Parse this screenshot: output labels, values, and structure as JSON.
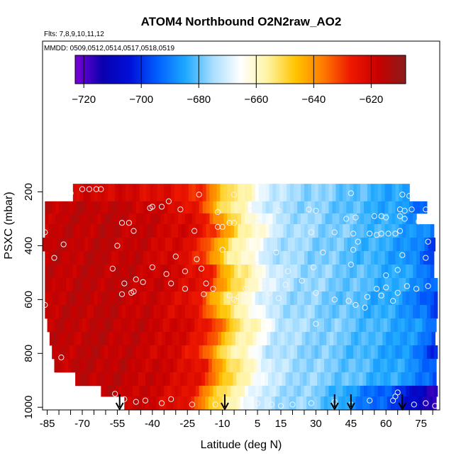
{
  "chart_data": {
    "type": "heatmap",
    "title": "ATOM4 Northbound O2N2raw_AO2",
    "flights_note": "Flts: 7,8,9,10,11,12",
    "dates_note": "MMDD: 0509,0512,0514,0517,0518,0519",
    "xlabel": "Latitude (deg N)",
    "ylabel": "PSXC (mbar)",
    "x_ticks": [
      -85,
      -70,
      -55,
      -40,
      -25,
      -10,
      5,
      15,
      30,
      45,
      60,
      75
    ],
    "y_ticks": [
      200,
      400,
      600,
      800,
      1000
    ],
    "x_range": [
      -87,
      83
    ],
    "y_range": [
      1010,
      -360
    ],
    "colorbar": {
      "min": -723,
      "max": -608,
      "ticks": [
        -720,
        -700,
        -680,
        -660,
        -640,
        -620
      ],
      "colors": [
        "#7a00d6",
        "#0a00b0",
        "#0010d8",
        "#0060ff",
        "#1ea8ff",
        "#a8deff",
        "#ffffff",
        "#fff3a0",
        "#ffc400",
        "#ff7a00",
        "#ee1800",
        "#c80000",
        "#8a1c1c"
      ]
    },
    "arrows_latitude": [
      -54,
      -9,
      38,
      45,
      67
    ],
    "levels": [
      {
        "p_top": 170,
        "p_bot": 235,
        "lat_min": -74,
        "lat_max": 70
      },
      {
        "p_top": 235,
        "p_bot": 280,
        "lat_min": -86,
        "lat_max": 77
      },
      {
        "p_top": 280,
        "p_bot": 320,
        "lat_min": -86,
        "lat_max": 72
      },
      {
        "p_top": 320,
        "p_bot": 370,
        "lat_min": -86,
        "lat_max": 80
      },
      {
        "p_top": 370,
        "p_bot": 420,
        "lat_min": -87,
        "lat_max": 80
      },
      {
        "p_top": 420,
        "p_bot": 470,
        "lat_min": -86,
        "lat_max": 80
      },
      {
        "p_top": 470,
        "p_bot": 520,
        "lat_min": -86,
        "lat_max": 80
      },
      {
        "p_top": 520,
        "p_bot": 570,
        "lat_min": -86,
        "lat_max": 81
      },
      {
        "p_top": 570,
        "p_bot": 620,
        "lat_min": -86,
        "lat_max": 81
      },
      {
        "p_top": 620,
        "p_bot": 670,
        "lat_min": -86,
        "lat_max": 81
      },
      {
        "p_top": 670,
        "p_bot": 720,
        "lat_min": -85,
        "lat_max": 81
      },
      {
        "p_top": 720,
        "p_bot": 770,
        "lat_min": -84,
        "lat_max": 81
      },
      {
        "p_top": 770,
        "p_bot": 820,
        "lat_min": -83,
        "lat_max": 81
      },
      {
        "p_top": 820,
        "p_bot": 870,
        "lat_min": -82,
        "lat_max": 81
      },
      {
        "p_top": 870,
        "p_bot": 920,
        "lat_min": -73,
        "lat_max": 81
      },
      {
        "p_top": 920,
        "p_bot": 960,
        "lat_min": -62,
        "lat_max": 81
      },
      {
        "p_top": 960,
        "p_bot": 1010,
        "lat_min": -52,
        "lat_max": 81
      }
    ],
    "profile_lat": [
      -87,
      -60,
      -40,
      -25,
      -17,
      -13,
      -8,
      -5,
      -1,
      3,
      8,
      12,
      20,
      30,
      40,
      48,
      55,
      65,
      72,
      78,
      83
    ],
    "profile_val": [
      -617,
      -616,
      -618,
      -622,
      -628,
      -638,
      -648,
      -654,
      -657,
      -661,
      -668,
      -672,
      -675,
      -677,
      -679,
      -681,
      -683,
      -685,
      -688,
      -693,
      -700
    ],
    "obs_points": [
      [
        -70,
        190
      ],
      [
        -67,
        190
      ],
      [
        -64,
        190
      ],
      [
        -62,
        190
      ],
      [
        -75,
        205
      ],
      [
        -86,
        215
      ],
      [
        -20,
        210
      ],
      [
        -5,
        210
      ],
      [
        45,
        205
      ],
      [
        67,
        210
      ],
      [
        70,
        215
      ],
      [
        -33,
        235
      ],
      [
        -40,
        255
      ],
      [
        -36,
        255
      ],
      [
        -41,
        260
      ],
      [
        -28,
        265
      ],
      [
        -12,
        275
      ],
      [
        2,
        270
      ],
      [
        14,
        270
      ],
      [
        27,
        265
      ],
      [
        30,
        270
      ],
      [
        66,
        265
      ],
      [
        68,
        270
      ],
      [
        71,
        265
      ],
      [
        77,
        265
      ],
      [
        -53,
        315
      ],
      [
        -50,
        315
      ],
      [
        -7,
        315
      ],
      [
        -5,
        315
      ],
      [
        2,
        310
      ],
      [
        5,
        315
      ],
      [
        43,
        300
      ],
      [
        47,
        295
      ],
      [
        55,
        290
      ],
      [
        58,
        290
      ],
      [
        60,
        295
      ],
      [
        66,
        290
      ],
      [
        -86,
        350
      ],
      [
        -48,
        345
      ],
      [
        -22,
        345
      ],
      [
        -12,
        330
      ],
      [
        -10,
        330
      ],
      [
        28,
        350
      ],
      [
        38,
        350
      ],
      [
        46,
        355
      ],
      [
        53,
        355
      ],
      [
        56,
        360
      ],
      [
        58,
        355
      ],
      [
        61,
        355
      ],
      [
        64,
        355
      ],
      [
        66,
        345
      ],
      [
        68,
        300
      ],
      [
        74,
        310
      ],
      [
        -78,
        395
      ],
      [
        -55,
        400
      ],
      [
        -10,
        415
      ],
      [
        13,
        425
      ],
      [
        33,
        425
      ],
      [
        48,
        385
      ],
      [
        78,
        385
      ],
      [
        -30,
        440
      ],
      [
        -21,
        450
      ],
      [
        -82,
        445
      ],
      [
        46,
        415
      ],
      [
        67,
        435
      ],
      [
        -57,
        485
      ],
      [
        -40,
        480
      ],
      [
        -34,
        505
      ],
      [
        -26,
        495
      ],
      [
        -19,
        485
      ],
      [
        5,
        470
      ],
      [
        18,
        495
      ],
      [
        29,
        480
      ],
      [
        45,
        470
      ],
      [
        60,
        510
      ],
      [
        65,
        490
      ],
      [
        77,
        445
      ],
      [
        -52,
        540
      ],
      [
        -47,
        525
      ],
      [
        -44,
        535
      ],
      [
        -32,
        540
      ],
      [
        -26,
        560
      ],
      [
        -17,
        540
      ],
      [
        8,
        540
      ],
      [
        17,
        545
      ],
      [
        24,
        530
      ],
      [
        56,
        560
      ],
      [
        60,
        555
      ],
      [
        69,
        550
      ],
      [
        73,
        560
      ],
      [
        -48,
        570
      ],
      [
        -18,
        580
      ],
      [
        -14,
        560
      ],
      [
        0,
        560
      ],
      [
        10,
        575
      ],
      [
        30,
        575
      ],
      [
        52,
        590
      ],
      [
        58,
        585
      ],
      [
        -53,
        580
      ],
      [
        -49,
        575
      ],
      [
        -3,
        590
      ],
      [
        -7,
        585
      ],
      [
        -5,
        600
      ],
      [
        -4,
        605
      ],
      [
        14,
        595
      ],
      [
        38,
        600
      ],
      [
        44,
        605
      ],
      [
        47,
        620
      ],
      [
        51,
        630
      ],
      [
        63,
        605
      ],
      [
        65,
        575
      ],
      [
        78,
        550
      ],
      [
        -86,
        620
      ],
      [
        30,
        690
      ],
      [
        -79,
        815
      ],
      [
        -56,
        950
      ],
      [
        -52,
        970
      ],
      [
        -47,
        980
      ],
      [
        -43,
        975
      ],
      [
        -36,
        985
      ],
      [
        -32,
        970
      ],
      [
        -23,
        990
      ],
      [
        -13,
        990
      ],
      [
        -6,
        985
      ],
      [
        0,
        990
      ],
      [
        5,
        985
      ],
      [
        11,
        990
      ],
      [
        15,
        995
      ],
      [
        20,
        990
      ],
      [
        28,
        985
      ],
      [
        38,
        980
      ],
      [
        45,
        990
      ],
      [
        53,
        975
      ],
      [
        63,
        975
      ],
      [
        64,
        960
      ],
      [
        65,
        945
      ],
      [
        72,
        990
      ],
      [
        77,
        985
      ],
      [
        81,
        995
      ]
    ]
  }
}
